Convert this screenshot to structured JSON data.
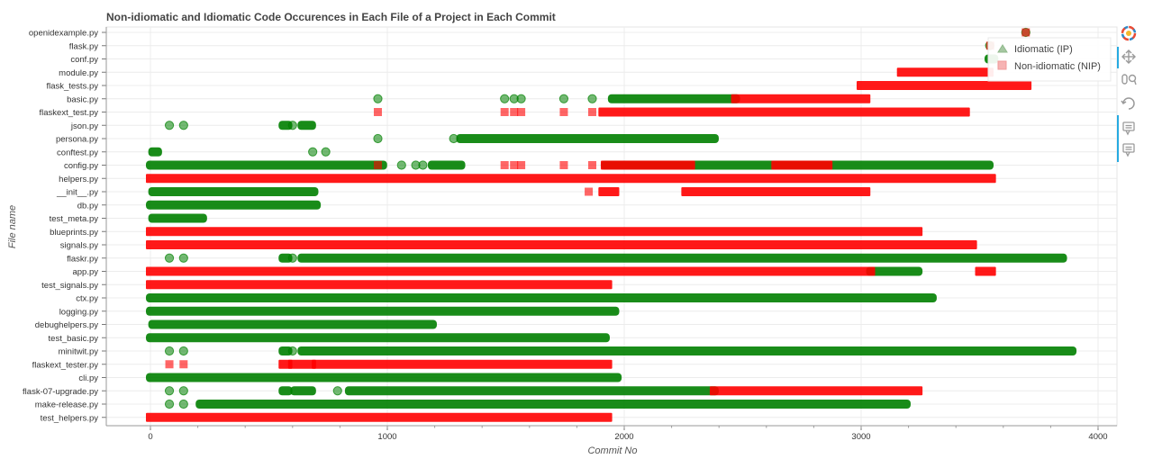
{
  "chart_data": {
    "type": "scatter",
    "title": "Non-idiomatic and Idiomatic Code Occurences in Each File of a Project in Each Commit",
    "xlabel": "Commit No",
    "ylabel": "File name",
    "xlim": [
      -180,
      4080
    ],
    "x_ticks": [
      0,
      1000,
      2000,
      3000,
      4000
    ],
    "grid": true,
    "legend_position": "top-right",
    "colors": {
      "idiomatic": "#008000",
      "non_idiomatic": "#ff0000"
    },
    "files": [
      "openidexample.py",
      "flask.py",
      "conf.py",
      "module.py",
      "flask_tests.py",
      "basic.py",
      "flaskext_test.py",
      "json.py",
      "persona.py",
      "conftest.py",
      "config.py",
      "helpers.py",
      "__init__.py",
      "db.py",
      "test_meta.py",
      "blueprints.py",
      "signals.py",
      "flaskr.py",
      "app.py",
      "test_signals.py",
      "ctx.py",
      "logging.py",
      "debughelpers.py",
      "test_basic.py",
      "minitwit.py",
      "flaskext_tester.py",
      "cli.py",
      "flask-07-upgrade.py",
      "make-release.py",
      "test_helpers.py"
    ],
    "series": [
      {
        "name": "Idiomatic (IP)",
        "marker": "triangle",
        "segments": [
          {
            "file": "openidexample.py",
            "ranges": [
              [
                3690,
                3700
              ]
            ]
          },
          {
            "file": "flask.py",
            "ranges": [
              [
                3540,
                3545
              ]
            ]
          },
          {
            "file": "conf.py",
            "ranges": [
              [
                3540,
                3560
              ]
            ]
          },
          {
            "file": "basic.py",
            "ranges": [
              [
                960,
                960
              ],
              [
                1490,
                1500
              ],
              [
                1530,
                1540
              ],
              [
                1560,
                1570
              ],
              [
                1740,
                1750
              ],
              [
                1860,
                1870
              ],
              [
                1950,
                2470
              ]
            ]
          },
          {
            "file": "json.py",
            "ranges": [
              [
                80,
                80
              ],
              [
                140,
                140
              ],
              [
                560,
                580
              ],
              [
                600,
                600
              ],
              [
                640,
                680
              ]
            ]
          },
          {
            "file": "persona.py",
            "ranges": [
              [
                960,
                960
              ],
              [
                1280,
                1280
              ],
              [
                1310,
                2380
              ]
            ]
          },
          {
            "file": "conftest.py",
            "ranges": [
              [
                10,
                30
              ],
              [
                680,
                690
              ],
              [
                740,
                740
              ]
            ]
          },
          {
            "file": "config.py",
            "ranges": [
              [
                0,
                980
              ],
              [
                1060,
                1060
              ],
              [
                1120,
                1120
              ],
              [
                1150,
                1150
              ],
              [
                1190,
                1310
              ],
              [
                1920,
                3540
              ]
            ]
          },
          {
            "file": "__init__.py",
            "ranges": [
              [
                10,
                690
              ]
            ]
          },
          {
            "file": "db.py",
            "ranges": [
              [
                0,
                700
              ]
            ]
          },
          {
            "file": "test_meta.py",
            "ranges": [
              [
                10,
                220
              ]
            ]
          },
          {
            "file": "flaskr.py",
            "ranges": [
              [
                80,
                80
              ],
              [
                140,
                140
              ],
              [
                560,
                580
              ],
              [
                600,
                600
              ],
              [
                640,
                3850
              ]
            ]
          },
          {
            "file": "app.py",
            "ranges": [
              [
                3040,
                3240
              ]
            ]
          },
          {
            "file": "ctx.py",
            "ranges": [
              [
                0,
                3300
              ]
            ]
          },
          {
            "file": "logging.py",
            "ranges": [
              [
                0,
                1960
              ]
            ]
          },
          {
            "file": "debughelpers.py",
            "ranges": [
              [
                10,
                1190
              ]
            ]
          },
          {
            "file": "test_basic.py",
            "ranges": [
              [
                0,
                1920
              ]
            ]
          },
          {
            "file": "minitwit.py",
            "ranges": [
              [
                80,
                80
              ],
              [
                140,
                140
              ],
              [
                560,
                580
              ],
              [
                600,
                600
              ],
              [
                640,
                3890
              ]
            ]
          },
          {
            "file": "cli.py",
            "ranges": [
              [
                0,
                1970
              ]
            ]
          },
          {
            "file": "flask-07-upgrade.py",
            "ranges": [
              [
                80,
                80
              ],
              [
                140,
                140
              ],
              [
                560,
                580
              ],
              [
                610,
                680
              ],
              [
                790,
                790
              ],
              [
                840,
                2380
              ]
            ]
          },
          {
            "file": "make-release.py",
            "ranges": [
              [
                80,
                80
              ],
              [
                140,
                140
              ],
              [
                210,
                3190
              ]
            ]
          }
        ]
      },
      {
        "name": "Non-idiomatic (NIP)",
        "marker": "square",
        "segments": [
          {
            "file": "openidexample.py",
            "ranges": [
              [
                3690,
                3700
              ]
            ]
          },
          {
            "file": "flask.py",
            "ranges": [
              [
                3540,
                3550
              ]
            ]
          },
          {
            "file": "module.py",
            "ranges": [
              [
                3170,
                3540
              ]
            ]
          },
          {
            "file": "flask_tests.py",
            "ranges": [
              [
                3000,
                3700
              ]
            ]
          },
          {
            "file": "basic.py",
            "ranges": [
              [
                2470,
                3020
              ]
            ]
          },
          {
            "file": "flaskext_test.py",
            "ranges": [
              [
                960,
                960
              ],
              [
                1490,
                1500
              ],
              [
                1530,
                1540
              ],
              [
                1560,
                1570
              ],
              [
                1740,
                1750
              ],
              [
                1860,
                1870
              ],
              [
                1910,
                3440
              ]
            ]
          },
          {
            "file": "config.py",
            "ranges": [
              [
                960,
                960
              ],
              [
                1490,
                1500
              ],
              [
                1530,
                1540
              ],
              [
                1560,
                1570
              ],
              [
                1740,
                1750
              ],
              [
                1860,
                1870
              ],
              [
                1920,
                2280
              ],
              [
                2640,
                2860
              ]
            ]
          },
          {
            "file": "helpers.py",
            "ranges": [
              [
                0,
                3550
              ]
            ]
          },
          {
            "file": "__init__.py",
            "ranges": [
              [
                1850,
                1850
              ],
              [
                1910,
                1960
              ],
              [
                2260,
                3020
              ]
            ]
          },
          {
            "file": "blueprints.py",
            "ranges": [
              [
                0,
                3240
              ]
            ]
          },
          {
            "file": "signals.py",
            "ranges": [
              [
                0,
                3470
              ]
            ]
          },
          {
            "file": "app.py",
            "ranges": [
              [
                0,
                3040
              ],
              [
                3500,
                3550
              ]
            ]
          },
          {
            "file": "test_signals.py",
            "ranges": [
              [
                0,
                1930
              ]
            ]
          },
          {
            "file": "flaskext_tester.py",
            "ranges": [
              [
                80,
                80
              ],
              [
                140,
                140
              ],
              [
                560,
                580
              ],
              [
                600,
                680
              ],
              [
                700,
                1930
              ]
            ]
          },
          {
            "file": "flask-07-upgrade.py",
            "ranges": [
              [
                2380,
                3240
              ]
            ]
          },
          {
            "file": "test_helpers.py",
            "ranges": [
              [
                0,
                1930
              ]
            ]
          }
        ]
      }
    ]
  },
  "toolbar": {
    "logo_icon": "bokeh-logo-icon",
    "pan_icon": "pan-move-icon",
    "wheel_zoom_icon": "wheel-zoom-icon",
    "reset_icon": "reset-icon",
    "hover_icon_1": "hover-tooltip-icon",
    "hover_icon_2": "hover-tooltip-icon"
  }
}
